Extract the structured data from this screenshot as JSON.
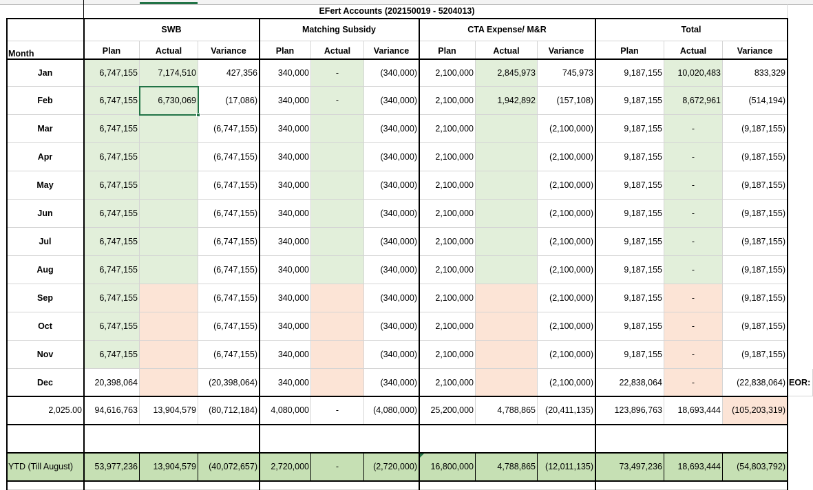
{
  "title": "EFert Accounts (202150019 - 5204013)",
  "groups": [
    "SWB",
    "Matching Subsidy",
    "CTA Expense/ M&R",
    "Total"
  ],
  "header": {
    "month": "Month",
    "sub": [
      "Plan",
      "Actual",
      "Variance",
      "Plan",
      "Actual",
      "Variance",
      "Plan",
      "Actual",
      "Variance",
      "Plan",
      "Actual",
      "Variance"
    ]
  },
  "months": [
    {
      "label": "Jan",
      "values": [
        "6,747,155",
        "7,174,510",
        "427,356",
        "340,000",
        "-",
        "(340,000)",
        "2,100,000",
        "2,845,973",
        "745,973",
        "9,187,155",
        "10,020,483",
        "833,329"
      ]
    },
    {
      "label": "Feb",
      "values": [
        "6,747,155",
        "6,730,069",
        "(17,086)",
        "340,000",
        "-",
        "(340,000)",
        "2,100,000",
        "1,942,892",
        "(157,108)",
        "9,187,155",
        "8,672,961",
        "(514,194)"
      ]
    },
    {
      "label": "Mar",
      "values": [
        "6,747,155",
        "",
        "(6,747,155)",
        "340,000",
        "",
        "(340,000)",
        "2,100,000",
        "",
        "(2,100,000)",
        "9,187,155",
        "-",
        "(9,187,155)"
      ]
    },
    {
      "label": "Apr",
      "values": [
        "6,747,155",
        "",
        "(6,747,155)",
        "340,000",
        "",
        "(340,000)",
        "2,100,000",
        "",
        "(2,100,000)",
        "9,187,155",
        "-",
        "(9,187,155)"
      ]
    },
    {
      "label": "May",
      "values": [
        "6,747,155",
        "",
        "(6,747,155)",
        "340,000",
        "",
        "(340,000)",
        "2,100,000",
        "",
        "(2,100,000)",
        "9,187,155",
        "-",
        "(9,187,155)"
      ]
    },
    {
      "label": "Jun",
      "values": [
        "6,747,155",
        "",
        "(6,747,155)",
        "340,000",
        "",
        "(340,000)",
        "2,100,000",
        "",
        "(2,100,000)",
        "9,187,155",
        "-",
        "(9,187,155)"
      ]
    },
    {
      "label": "Jul",
      "values": [
        "6,747,155",
        "",
        "(6,747,155)",
        "340,000",
        "",
        "(340,000)",
        "2,100,000",
        "",
        "(2,100,000)",
        "9,187,155",
        "-",
        "(9,187,155)"
      ]
    },
    {
      "label": "Aug",
      "values": [
        "6,747,155",
        "",
        "(6,747,155)",
        "340,000",
        "",
        "(340,000)",
        "2,100,000",
        "",
        "(2,100,000)",
        "9,187,155",
        "-",
        "(9,187,155)"
      ]
    },
    {
      "label": "Sep",
      "values": [
        "6,747,155",
        "",
        "(6,747,155)",
        "340,000",
        "",
        "(340,000)",
        "2,100,000",
        "",
        "(2,100,000)",
        "9,187,155",
        "-",
        "(9,187,155)"
      ]
    },
    {
      "label": "Oct",
      "values": [
        "6,747,155",
        "",
        "(6,747,155)",
        "340,000",
        "",
        "(340,000)",
        "2,100,000",
        "",
        "(2,100,000)",
        "9,187,155",
        "-",
        "(9,187,155)"
      ]
    },
    {
      "label": "Nov",
      "values": [
        "6,747,155",
        "",
        "(6,747,155)",
        "340,000",
        "",
        "(340,000)",
        "2,100,000",
        "",
        "(2,100,000)",
        "9,187,155",
        "-",
        "(9,187,155)"
      ]
    },
    {
      "label": "Dec",
      "values": [
        "20,398,064",
        "",
        "(20,398,064)",
        "340,000",
        "",
        "(340,000)",
        "2,100,000",
        "",
        "(2,100,000)",
        "22,838,064",
        "-",
        "(22,838,064)"
      ]
    }
  ],
  "dec_note": "EOR:",
  "total_row": {
    "label": "2,025.00",
    "values": [
      "94,616,763",
      "13,904,579",
      "(80,712,184)",
      "4,080,000",
      "-",
      "(4,080,000)",
      "25,200,000",
      "4,788,865",
      "(20,411,135)",
      "123,896,763",
      "18,693,444",
      "(105,203,319)"
    ]
  },
  "ytd_row": {
    "label": "YTD (Till August)",
    "values": [
      "53,977,236",
      "13,904,579",
      "(40,072,657)",
      "2,720,000",
      "-",
      "(2,720,000)",
      "16,800,000",
      "4,788,865",
      "(12,011,135)",
      "73,497,236",
      "18,693,444",
      "(54,803,792)"
    ]
  },
  "colors": {
    "light_green": "#e2efda",
    "pink": "#fce4d6",
    "ytd_green": "#c6e0b4",
    "selection": "#217346"
  },
  "selected_cell": "Feb Actual (SWB)"
}
